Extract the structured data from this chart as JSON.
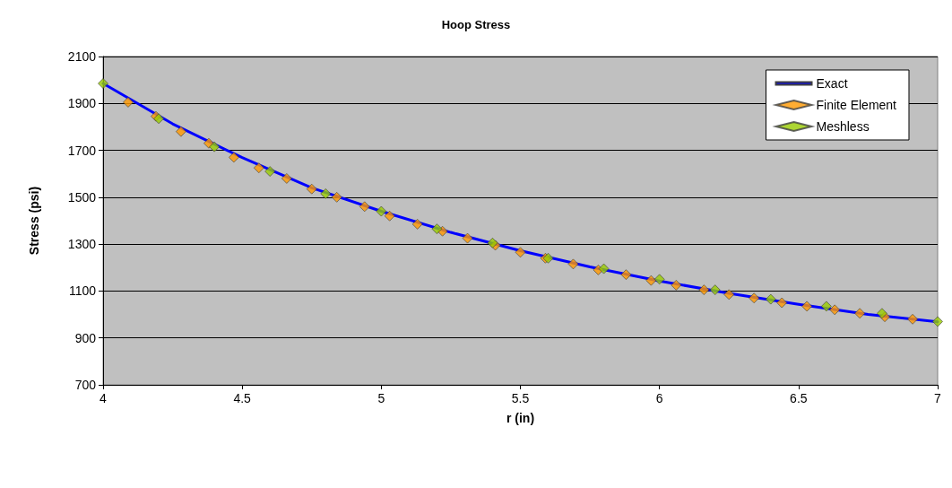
{
  "chart_data": {
    "type": "line",
    "title": "Hoop Stress",
    "xlabel": "r (in)",
    "ylabel": "Stress (psi)",
    "xlim": [
      4,
      7
    ],
    "xticks": [
      4,
      4.5,
      5,
      5.5,
      6,
      6.5,
      7
    ],
    "ylim": [
      700,
      2100
    ],
    "yticks": [
      700,
      900,
      1100,
      1300,
      1500,
      1700,
      1900,
      2100
    ],
    "grid": "y",
    "legend": "top right",
    "series": [
      {
        "name": "Exact",
        "color": "#0000ff",
        "marker": "none",
        "line_style": "solid",
        "x": [
          4,
          4.25,
          4.5,
          4.75,
          5,
          5.25,
          5.5,
          5.75,
          6,
          6.25,
          6.5,
          6.75,
          7
        ],
        "values": [
          1985,
          1813,
          1669,
          1540,
          1440,
          1350,
          1272,
          1203,
          1143,
          1090,
          1043,
          1000,
          969
        ]
      },
      {
        "name": "Finite Element",
        "type": "scatter",
        "color": "#ff9900",
        "marker": "diamond",
        "x": [
          4.09,
          4.19,
          4.28,
          4.38,
          4.47,
          4.56,
          4.66,
          4.75,
          4.84,
          4.94,
          5.03,
          5.13,
          5.22,
          5.31,
          5.41,
          5.5,
          5.59,
          5.69,
          5.78,
          5.88,
          5.97,
          6.06,
          6.16,
          6.25,
          6.34,
          6.44,
          6.53,
          6.63,
          6.72,
          6.81,
          6.91
        ],
        "values": [
          1905,
          1845,
          1780,
          1730,
          1670,
          1625,
          1580,
          1535,
          1500,
          1460,
          1420,
          1385,
          1355,
          1325,
          1295,
          1265,
          1240,
          1215,
          1190,
          1170,
          1145,
          1125,
          1105,
          1085,
          1070,
          1050,
          1035,
          1020,
          1005,
          990,
          980
        ]
      },
      {
        "name": "Meshless",
        "type": "scatter",
        "color": "#99cc00",
        "marker": "diamond",
        "x": [
          4,
          4.2,
          4.4,
          4.6,
          4.8,
          5,
          5.2,
          5.4,
          5.6,
          5.8,
          6,
          6.2,
          6.4,
          6.6,
          6.8,
          7
        ],
        "values": [
          1985,
          1835,
          1715,
          1610,
          1515,
          1440,
          1365,
          1305,
          1240,
          1195,
          1150,
          1105,
          1065,
          1035,
          1005,
          970
        ]
      }
    ]
  }
}
